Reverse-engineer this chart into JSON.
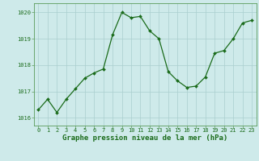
{
  "x": [
    0,
    1,
    2,
    3,
    4,
    5,
    6,
    7,
    8,
    9,
    10,
    11,
    12,
    13,
    14,
    15,
    16,
    17,
    18,
    19,
    20,
    21,
    22,
    23
  ],
  "y": [
    1016.3,
    1016.7,
    1016.2,
    1016.7,
    1017.1,
    1017.5,
    1017.7,
    1017.85,
    1019.15,
    1020.0,
    1019.8,
    1019.85,
    1019.3,
    1019.0,
    1017.75,
    1017.4,
    1017.15,
    1017.2,
    1017.55,
    1018.45,
    1018.55,
    1019.0,
    1019.6,
    1019.7
  ],
  "line_color": "#1a6b1a",
  "marker": "D",
  "marker_size": 2.0,
  "linewidth": 0.9,
  "bg_color": "#ceeaea",
  "grid_color": "#aacece",
  "title": "Graphe pression niveau de la mer (hPa)",
  "ylim": [
    1015.7,
    1020.35
  ],
  "yticks": [
    1016,
    1017,
    1018,
    1019,
    1020
  ],
  "xlim": [
    -0.5,
    23.5
  ],
  "xticks": [
    0,
    1,
    2,
    3,
    4,
    5,
    6,
    7,
    8,
    9,
    10,
    11,
    12,
    13,
    14,
    15,
    16,
    17,
    18,
    19,
    20,
    21,
    22,
    23
  ],
  "tick_color": "#1a6b1a",
  "tick_fontsize": 5.0,
  "title_fontsize": 6.5,
  "spine_color": "#5a9a5a"
}
